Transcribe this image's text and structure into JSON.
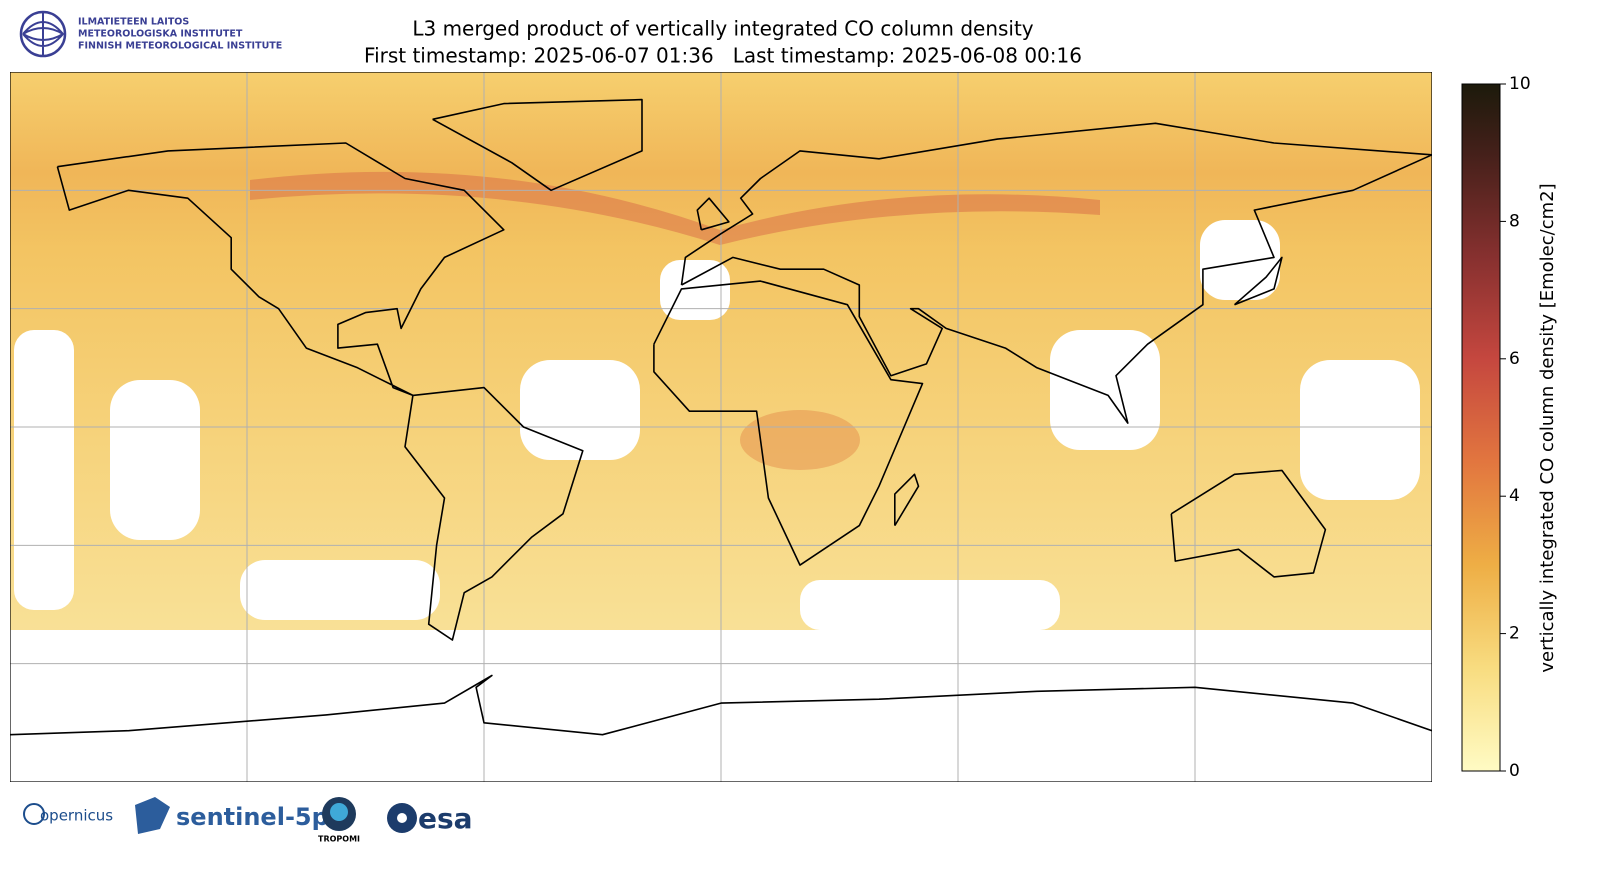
{
  "header": {
    "title": "L3 merged product of vertically integrated CO column density",
    "subtitle": "First timestamp: 2025-06-07 01:36   Last timestamp: 2025-06-08 00:16"
  },
  "colorbar": {
    "label": "vertically integrated CO column density [Emolec/cm2]",
    "lim": [
      0,
      10
    ],
    "ticks": [
      0,
      2,
      4,
      6,
      8,
      10
    ]
  },
  "logos": {
    "fmi": [
      "ILMATIETEEN LAITOS",
      "METEOROLOGISKA INSTITUTET",
      "FINNISH METEOROLOGICAL INSTITUTE"
    ],
    "copernicus": "opernicus",
    "sentinel": "sentinel-5p",
    "tropomi": "TROPOMI",
    "esa": "esa"
  }
}
